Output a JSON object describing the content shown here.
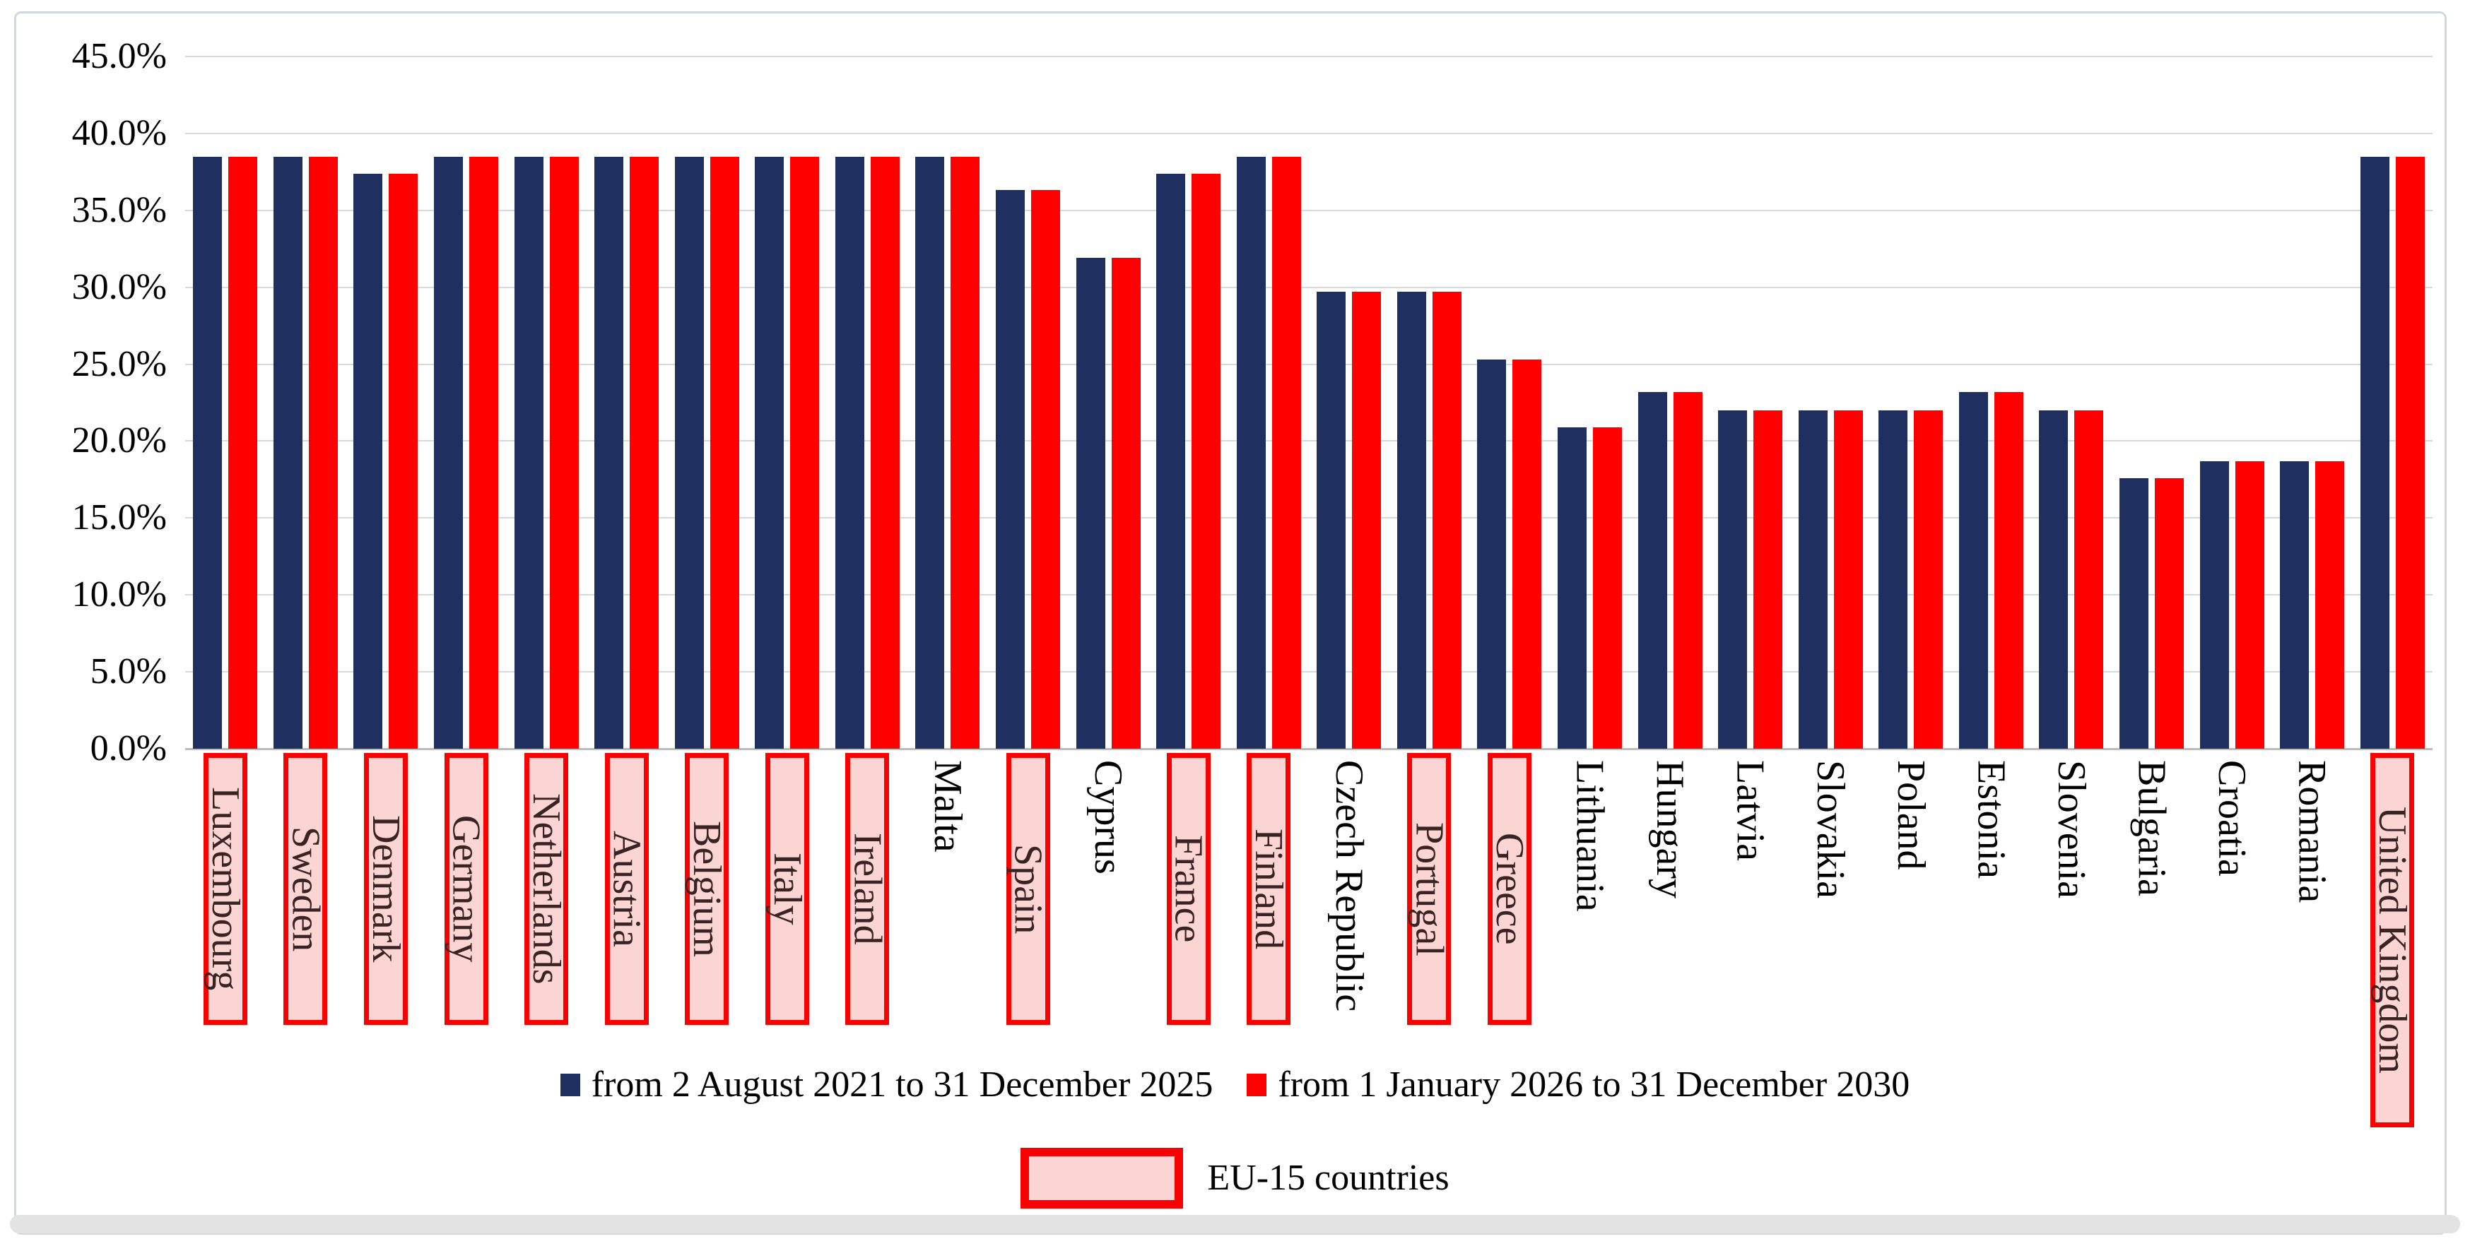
{
  "chart_data": {
    "type": "bar",
    "title": "",
    "xlabel": "",
    "ylabel": "",
    "ylim": [
      0,
      45
    ],
    "grid": true,
    "legend_position": "bottom",
    "y_axis": {
      "ticks": [
        0,
        5,
        10,
        15,
        20,
        25,
        30,
        35,
        40,
        45
      ],
      "tick_labels": [
        "0.0%",
        "5.0%",
        "10.0%",
        "15.0%",
        "20.0%",
        "25.0%",
        "30.0%",
        "35.0%",
        "40.0%",
        "45.0%"
      ]
    },
    "categories": [
      "Luxembourg",
      "Sweden",
      "Denmark",
      "Germany",
      "Netherlands",
      "Austria",
      "Belgium",
      "Italy",
      "Ireland",
      "Malta",
      "Spain",
      "Cyprus",
      "France",
      "Finland",
      "Czech Republic",
      "Portugal",
      "Greece",
      "Lithuania",
      "Hungary",
      "Latvia",
      "Slovakia",
      "Poland",
      "Estonia",
      "Slovenia",
      "Bulgaria",
      "Croatia",
      "Romania",
      "United Kingdom"
    ],
    "eu15_flags": [
      true,
      true,
      true,
      true,
      true,
      true,
      true,
      true,
      true,
      false,
      true,
      false,
      true,
      true,
      false,
      true,
      true,
      false,
      false,
      false,
      false,
      false,
      false,
      false,
      false,
      false,
      false,
      true
    ],
    "series": [
      {
        "name": "from 2 August 2021 to 31 December 2025",
        "color": "#1f3060",
        "values": [
          38.5,
          38.5,
          37.4,
          38.5,
          38.5,
          38.5,
          38.5,
          38.5,
          38.5,
          38.5,
          36.3,
          31.9,
          37.4,
          38.5,
          29.7,
          29.7,
          25.3,
          20.9,
          23.2,
          22.0,
          22.0,
          22.0,
          23.2,
          22.0,
          17.6,
          18.7,
          18.7,
          38.5
        ]
      },
      {
        "name": "from 1 January 2026 to 31 December 2030",
        "color": "#fe0000",
        "values": [
          38.5,
          38.5,
          37.4,
          38.5,
          38.5,
          38.5,
          38.5,
          38.5,
          38.5,
          38.5,
          36.3,
          31.9,
          37.4,
          38.5,
          29.7,
          29.7,
          25.3,
          20.9,
          23.2,
          22.0,
          22.0,
          22.0,
          23.2,
          22.0,
          17.6,
          18.7,
          18.7,
          38.5
        ]
      }
    ],
    "eu15_legend_label": "EU-15 countries",
    "eu15_style": {
      "fill": "#fbd4d4",
      "border": "#fb0000",
      "text_color": "#3a2323"
    },
    "colors": {
      "gridline": "#d9d9d9",
      "axis_line": "#bdbdbd",
      "figure_border": "#d3d7de",
      "bottom_bar": "#e3e3e3",
      "tick_text": "#000000",
      "category_text": "#000000"
    }
  }
}
